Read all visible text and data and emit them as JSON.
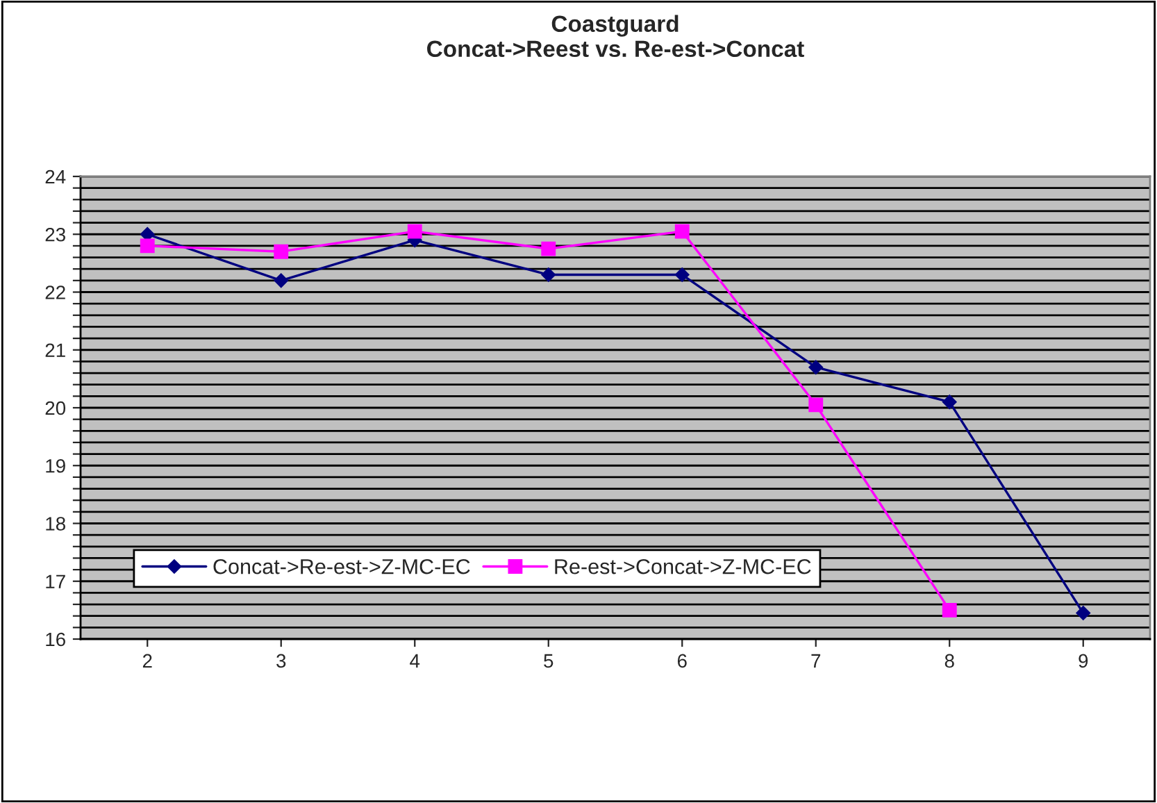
{
  "chart_data": {
    "type": "line",
    "title": "Coastguard\nConcat->Reest vs. Re-est->Concat",
    "categories": [
      "2",
      "3",
      "4",
      "5",
      "6",
      "7",
      "8",
      "9"
    ],
    "series": [
      {
        "name": "Concat->Re-est->Z-MC-EC",
        "color": "#000080",
        "marker": "diamond",
        "values": [
          23.0,
          22.2,
          22.9,
          22.3,
          22.3,
          20.7,
          20.1,
          16.45
        ]
      },
      {
        "name": "Re-est->Concat->Z-MC-EC",
        "color": "#ff00ff",
        "marker": "square",
        "values": [
          22.8,
          22.7,
          23.05,
          22.75,
          23.05,
          20.05,
          16.5,
          null
        ]
      }
    ],
    "ylim": [
      16,
      24
    ],
    "yticks": [
      16,
      {
        "value": 16.2,
        "label": null
      },
      {
        "value": 16.4,
        "label": null
      },
      {
        "value": 16.6,
        "label": null
      },
      {
        "value": 16.8,
        "label": null
      },
      17,
      {
        "value": 17.2,
        "label": null
      },
      {
        "value": 17.4,
        "label": null
      },
      {
        "value": 17.6,
        "label": null
      },
      {
        "value": 17.8,
        "label": null
      },
      18,
      {
        "value": 18.2,
        "label": null
      },
      {
        "value": 18.4,
        "label": null
      },
      {
        "value": 18.6,
        "label": null
      },
      {
        "value": 18.8,
        "label": null
      },
      19,
      {
        "value": 19.2,
        "label": null
      },
      {
        "value": 19.4,
        "label": null
      },
      {
        "value": 19.6,
        "label": null
      },
      {
        "value": 19.8,
        "label": null
      },
      20,
      {
        "value": 20.2,
        "label": null
      },
      {
        "value": 20.4,
        "label": null
      },
      {
        "value": 20.6,
        "label": null
      },
      {
        "value": 20.8,
        "label": null
      },
      21,
      {
        "value": 21.2,
        "label": null
      },
      {
        "value": 21.4,
        "label": null
      },
      {
        "value": 21.6,
        "label": null
      },
      {
        "value": 21.8,
        "label": null
      },
      22,
      {
        "value": 22.2,
        "label": null
      },
      {
        "value": 22.4,
        "label": null
      },
      {
        "value": 22.6,
        "label": null
      },
      {
        "value": 22.8,
        "label": null
      },
      23,
      {
        "value": 23.2,
        "label": null
      },
      {
        "value": 23.4,
        "label": null
      },
      {
        "value": 23.6,
        "label": null
      },
      {
        "value": 23.8,
        "label": null
      },
      24
    ],
    "grid": "y",
    "legend": "bottom left",
    "line_style": "solid"
  }
}
